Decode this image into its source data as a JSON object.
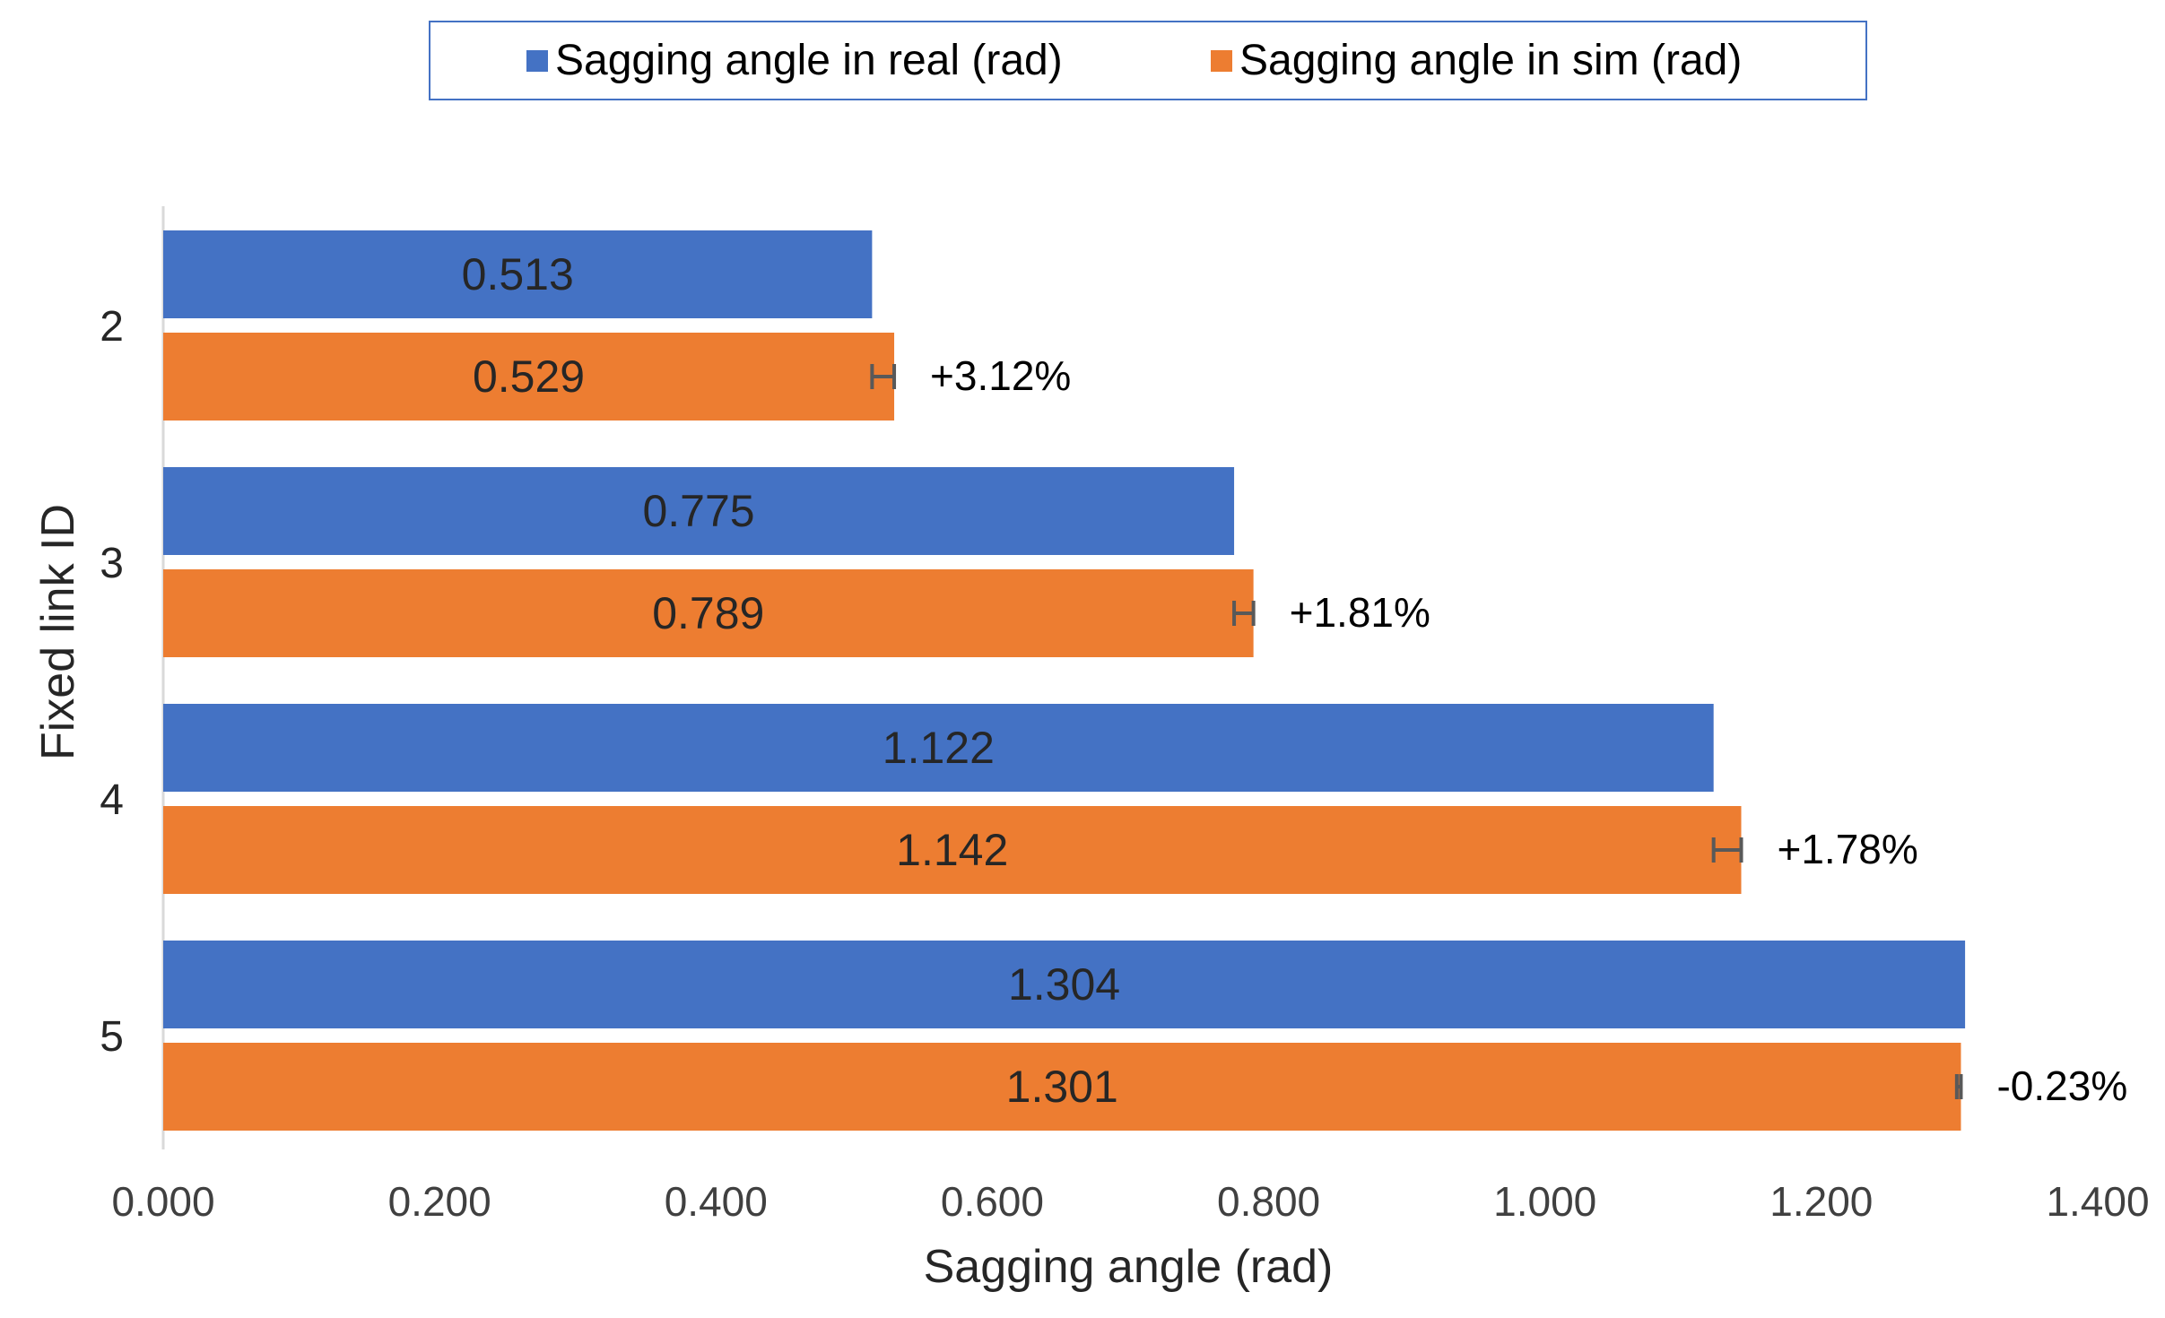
{
  "chart_data": {
    "type": "bar",
    "orientation": "horizontal",
    "title": "",
    "xlabel": "Sagging angle (rad)",
    "ylabel": "Fixed link ID",
    "xlim": [
      0,
      1.4
    ],
    "xticks": [
      0.0,
      0.2,
      0.4,
      0.6,
      0.8,
      1.0,
      1.2,
      1.4
    ],
    "xtick_labels": [
      "0.000",
      "0.200",
      "0.400",
      "0.600",
      "0.800",
      "1.000",
      "1.200",
      "1.400"
    ],
    "grid": false,
    "legend_position": "top-center",
    "categories": [
      "2",
      "3",
      "4",
      "5"
    ],
    "series": [
      {
        "name": "Sagging angle in real (rad)",
        "color": "#4472c4",
        "values": [
          0.513,
          0.775,
          1.122,
          1.304
        ],
        "labels": [
          "0.513",
          "0.775",
          "1.122",
          "1.304"
        ]
      },
      {
        "name": "Sagging angle in sim (rad)",
        "color": "#ed7d31",
        "values": [
          0.529,
          0.789,
          1.142,
          1.301
        ],
        "labels": [
          "0.529",
          "0.789",
          "1.142",
          "1.301"
        ],
        "error_bars": [
          0.016,
          0.014,
          0.02,
          0.003
        ],
        "annotations": [
          "+3.12%",
          "+1.81%",
          "+1.78%",
          "-0.23%"
        ]
      }
    ]
  }
}
